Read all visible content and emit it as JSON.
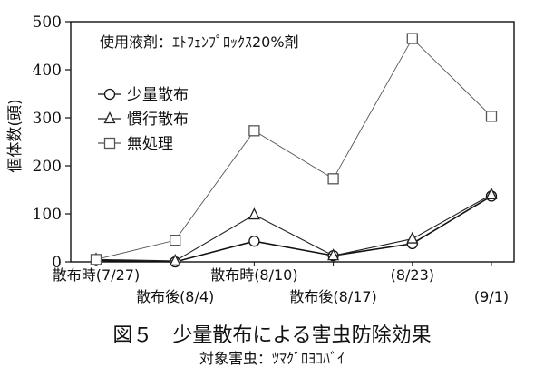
{
  "chart_data": {
    "type": "line",
    "ylabel": "個体数(頭)",
    "ylim": [
      0,
      500
    ],
    "yticks": [
      0,
      100,
      200,
      300,
      400,
      500
    ],
    "grid": false,
    "legend_position": "upper-left",
    "annotation": "使用液剤：ｴﾄﾌｪﾝﾌﾟﾛｯｸｽ20%剤",
    "x_labels": [
      {
        "text": "散布時(7/27)",
        "row": 1,
        "x_index": 0
      },
      {
        "text": "散布後(8/4)",
        "row": 2,
        "x_index": 1
      },
      {
        "text": "散布時(8/10)",
        "row": 1,
        "x_index": 2
      },
      {
        "text": "散布後(8/17)",
        "row": 2,
        "x_index": 3
      },
      {
        "text": "(8/23)",
        "row": 1,
        "x_index": 4
      },
      {
        "text": "(9/1)",
        "row": 2,
        "x_index": 5
      }
    ],
    "series": [
      {
        "name": "少量散布",
        "marker": "circle",
        "color": "#111111",
        "values": [
          3,
          0,
          43,
          13,
          38,
          137
        ]
      },
      {
        "name": "慣行散布",
        "marker": "triangle",
        "color": "#222222",
        "values": [
          5,
          2,
          98,
          13,
          48,
          140
        ]
      },
      {
        "name": "無処理",
        "marker": "square",
        "color": "#555555",
        "values": [
          5,
          45,
          273,
          173,
          465,
          303
        ]
      }
    ]
  },
  "caption": {
    "title": "図５　少量散布による害虫防除効果",
    "subtitle": "対象害虫：ﾂﾏｸﾞﾛﾖｺﾊﾞｲ"
  }
}
